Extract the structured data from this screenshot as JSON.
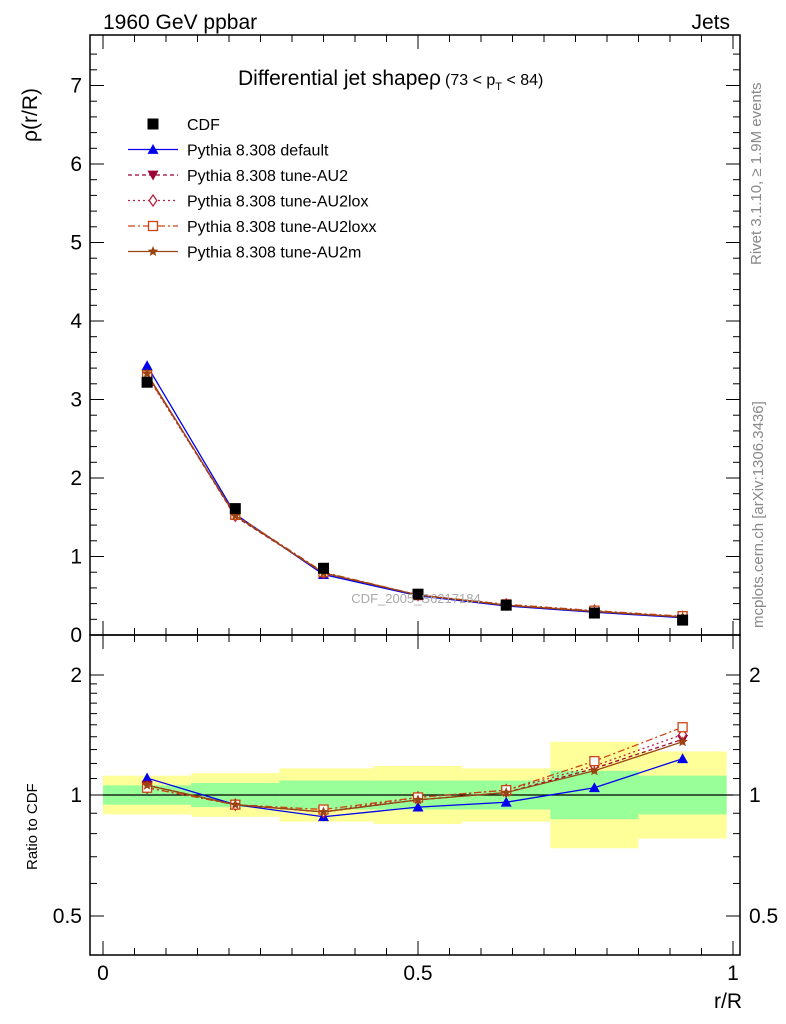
{
  "header": {
    "left": "1960 GeV ppbar",
    "right": "Jets"
  },
  "side_labels": {
    "rivet": "Rivet 3.1.10, ≥ 1.9M events",
    "mcplots": "mcplots.cern.ch [arXiv:1306.3436]"
  },
  "watermark": "CDF_2005_S6217184",
  "chart_data": {
    "type": "line",
    "title": "Differential jet shapeρ",
    "title_sub": "(73 < p",
    "title_sub_index": "T",
    "title_sub_tail": " < 84)",
    "xlabel": "r/R",
    "ylabel": "ρ(r/R)",
    "ratio_ylabel": "Ratio to CDF",
    "xlim": [
      0,
      1
    ],
    "ylim": [
      0,
      7.7
    ],
    "ratio_ylim": [
      0.35,
      2.3
    ],
    "x_ticks": [
      "0",
      "0.5",
      "1"
    ],
    "y_ticks": [
      "0",
      "1",
      "2",
      "3",
      "4",
      "5",
      "6",
      "7"
    ],
    "ratio_ticks": [
      "0.5",
      "1",
      "2"
    ],
    "x": [
      0.07,
      0.21,
      0.35,
      0.5,
      0.64,
      0.78,
      0.92
    ],
    "data": {
      "name": "CDF",
      "color": "#000000",
      "y": [
        3.22,
        1.61,
        0.85,
        0.52,
        0.38,
        0.28,
        0.19
      ]
    },
    "bands": {
      "edges": [
        0,
        0.14,
        0.28,
        0.43,
        0.57,
        0.71,
        0.85,
        0.99
      ],
      "inner": [
        [
          0.96,
          1.04
        ],
        [
          0.95,
          1.05
        ],
        [
          0.94,
          1.06
        ],
        [
          0.94,
          1.06
        ],
        [
          0.94,
          1.06
        ],
        [
          0.9,
          1.1
        ],
        [
          0.92,
          1.08
        ]
      ],
      "outer": [
        [
          0.92,
          1.08
        ],
        [
          0.91,
          1.09
        ],
        [
          0.89,
          1.11
        ],
        [
          0.88,
          1.12
        ],
        [
          0.89,
          1.11
        ],
        [
          0.78,
          1.22
        ],
        [
          0.82,
          1.18
        ]
      ],
      "inner_color": "#99ff99",
      "outer_color": "#ffff99"
    },
    "series": [
      {
        "name": "Pythia 8.308 default",
        "color": "#0000ee",
        "marker": "triangle-up",
        "dash": "",
        "y": [
          3.43,
          1.54,
          0.77,
          0.5,
          0.37,
          0.29,
          0.22
        ],
        "ratio": [
          1.07,
          0.96,
          0.91,
          0.95,
          0.97,
          1.03,
          1.15
        ]
      },
      {
        "name": "Pythia 8.308 tune-AU2",
        "color": "#990033",
        "marker": "triangle-down",
        "dash": "4,3",
        "y": [
          3.32,
          1.51,
          0.79,
          0.51,
          0.38,
          0.3,
          0.23
        ],
        "ratio": [
          1.04,
          0.96,
          0.93,
          0.98,
          1.01,
          1.11,
          1.23
        ]
      },
      {
        "name": "Pythia 8.308 tune-AU2lox",
        "color": "#bb2244",
        "marker": "diamond-open",
        "dash": "2,3",
        "y": [
          3.3,
          1.52,
          0.79,
          0.51,
          0.39,
          0.31,
          0.23
        ],
        "ratio": [
          1.03,
          0.96,
          0.93,
          0.99,
          1.02,
          1.12,
          1.25
        ]
      },
      {
        "name": "Pythia 8.308 tune-AU2loxx",
        "color": "#cc4411",
        "marker": "square-open",
        "dash": "7,3,2,3",
        "y": [
          3.31,
          1.53,
          0.8,
          0.51,
          0.39,
          0.31,
          0.24
        ],
        "ratio": [
          1.03,
          0.96,
          0.94,
          0.99,
          1.02,
          1.14,
          1.28
        ]
      },
      {
        "name": "Pythia 8.308 tune-AU2m",
        "color": "#994411",
        "marker": "star",
        "dash": "",
        "y": [
          3.33,
          1.52,
          0.79,
          0.51,
          0.38,
          0.3,
          0.23
        ],
        "ratio": [
          1.04,
          0.96,
          0.93,
          0.98,
          1.01,
          1.1,
          1.22
        ]
      }
    ],
    "legend_position": "top-left"
  }
}
